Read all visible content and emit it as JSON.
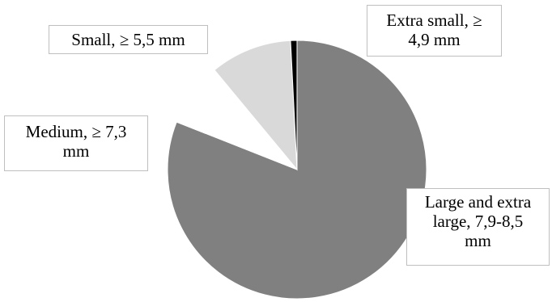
{
  "chart_data": {
    "type": "pie",
    "title": "",
    "start_angle_deg": 0,
    "direction": "clockwise",
    "slices": [
      {
        "label": "Large and extra large, 7,9-8,5 mm",
        "value": 81.0,
        "color": "#808080"
      },
      {
        "label": "Medium, ≥ 7,3 mm",
        "value": 8.0,
        "color": "#ffffff"
      },
      {
        "label": "Small, ≥ 5,5 mm",
        "value": 10.2,
        "color": "#d9d9d9"
      },
      {
        "label": "Extra small, ≥ 4,9 mm",
        "value": 0.8,
        "color": "#000000"
      }
    ]
  },
  "labels": {
    "extra_small": "Extra small, ≥\n4,9 mm",
    "small": "Small, ≥ 5,5 mm",
    "medium": "Medium, ≥ 7,3\nmm",
    "large": "Large and extra\nlarge, 7,9-8,5\nmm"
  }
}
